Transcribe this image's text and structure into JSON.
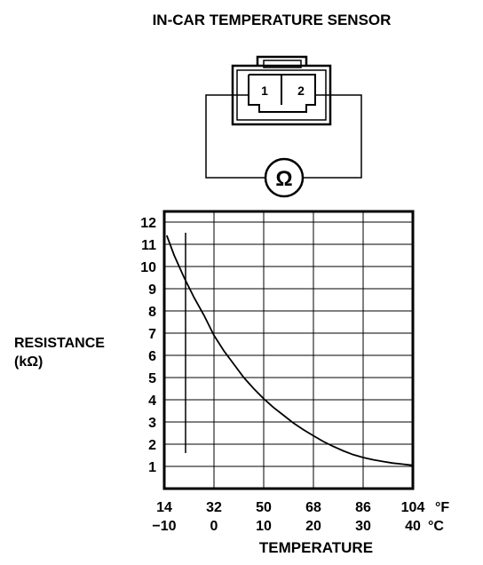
{
  "title": "IN-CAR TEMPERATURE SENSOR",
  "connector": {
    "pin_labels": [
      "1",
      "2"
    ],
    "meter_symbol": "Ω"
  },
  "chart_data": {
    "type": "line",
    "ylabel": [
      "RESISTANCE",
      "(kΩ)"
    ],
    "xlabel": "TEMPERATURE",
    "x_unit_f": "°F",
    "x_unit_c": "°C",
    "x_ticks_f": [
      "14",
      "32",
      "50",
      "68",
      "86",
      "104"
    ],
    "x_ticks_c": [
      "−10",
      "0",
      "10",
      "20",
      "30",
      "40"
    ],
    "x_tick_values_c": [
      -10,
      0,
      10,
      20,
      30,
      40
    ],
    "y_ticks": [
      "1",
      "2",
      "3",
      "4",
      "5",
      "6",
      "7",
      "8",
      "9",
      "10",
      "11",
      "12"
    ],
    "xlim_c": [
      -10,
      40
    ],
    "ylim": [
      0,
      12
    ],
    "grid": true,
    "series": [
      {
        "x": [
          -9.5,
          -8,
          -6,
          -4,
          -2,
          0,
          2,
          4,
          6,
          8,
          10,
          12,
          14,
          16,
          18,
          20,
          22,
          24,
          26,
          28,
          30,
          32,
          34,
          36,
          38,
          40
        ],
        "y": [
          11.4,
          10.5,
          9.5,
          8.6,
          7.8,
          6.9,
          6.2,
          5.6,
          5.0,
          4.5,
          4.05,
          3.65,
          3.3,
          2.95,
          2.65,
          2.38,
          2.12,
          1.9,
          1.7,
          1.53,
          1.4,
          1.3,
          1.22,
          1.15,
          1.1,
          1.05
        ]
      }
    ]
  }
}
